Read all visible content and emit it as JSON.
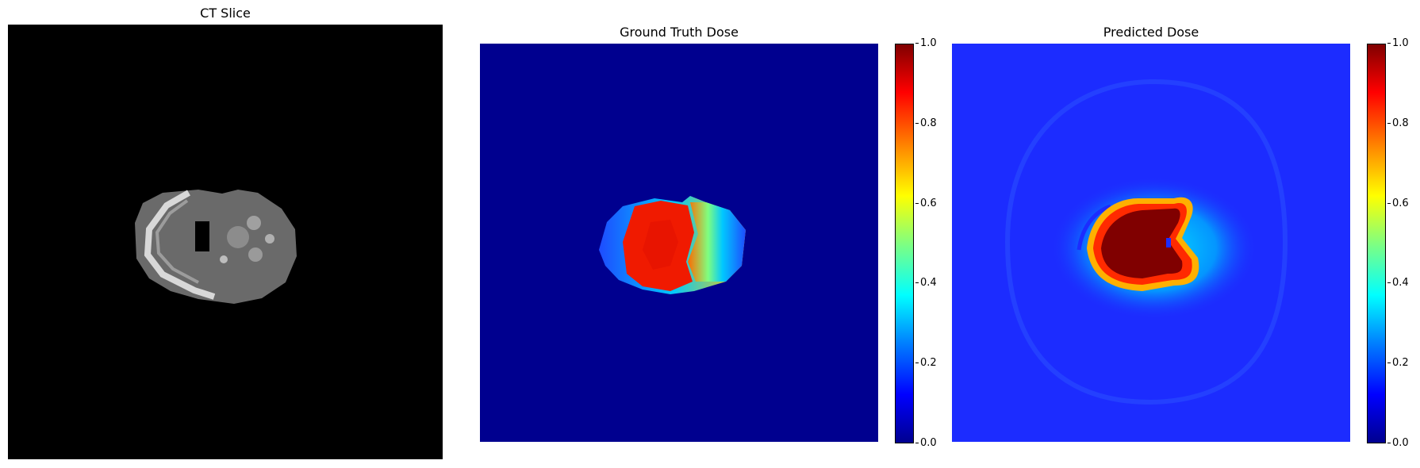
{
  "panels": [
    {
      "title": "CT Slice"
    },
    {
      "title": "Ground Truth Dose"
    },
    {
      "title": "Predicted Dose"
    }
  ],
  "colorbar": {
    "colormap": "jet",
    "min": 0.0,
    "max": 1.0,
    "ticks": [
      "1.0",
      "0.8",
      "0.6",
      "0.4",
      "0.2",
      "0.0"
    ]
  },
  "colors": {
    "ct_background": "#000000",
    "dose_background_gt": "#00008f",
    "dose_background_pred": "#1c2cff",
    "dose_peak": "#800000"
  }
}
